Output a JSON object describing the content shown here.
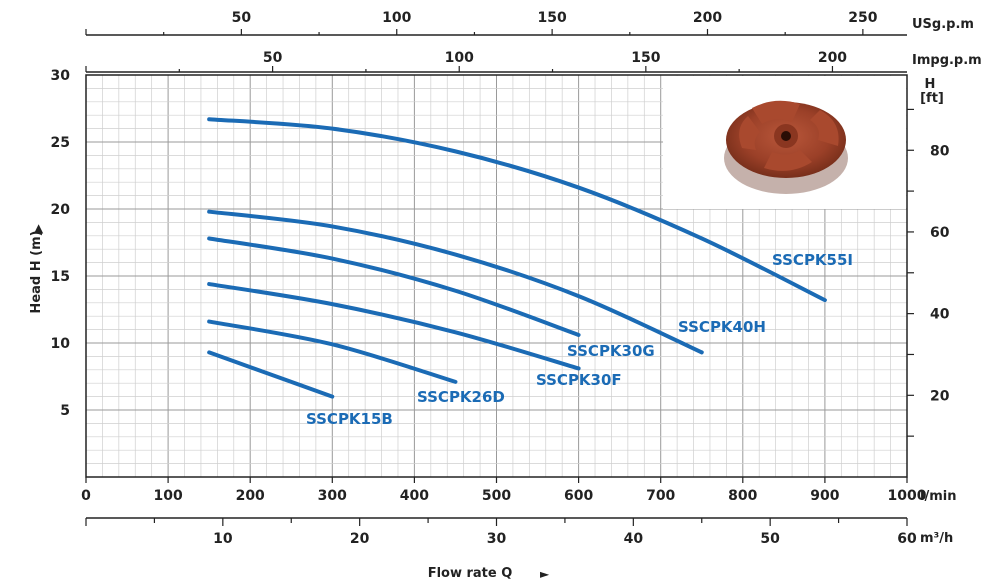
{
  "chart_data": {
    "type": "line",
    "title": "",
    "xlabel": "Flow rate Q",
    "ylabel": "Head H (m)",
    "xlim": [
      0,
      1000
    ],
    "ylim": [
      0,
      30
    ],
    "x_ticks": [
      0,
      100,
      200,
      300,
      400,
      500,
      600,
      700,
      800,
      900,
      1000
    ],
    "x_unit": "l/min",
    "y_ticks": [
      5,
      10,
      15,
      20,
      25,
      30
    ],
    "secondary_axes": {
      "ft": {
        "label": "H\n[ft]",
        "ticks": [
          20,
          40,
          60,
          80
        ]
      },
      "m3h": {
        "unit": "m³/h",
        "ticks": [
          10,
          20,
          30,
          40,
          50,
          60
        ]
      },
      "usgpm": {
        "unit": "USg.p.m",
        "ticks": [
          50,
          100,
          150,
          200,
          250
        ]
      },
      "impgpm": {
        "unit": "Impg.p.m",
        "ticks": [
          50,
          100,
          150,
          200
        ]
      }
    },
    "grid": true,
    "line_color": "#1b6bb5",
    "series": [
      {
        "name": "SSCPK55I",
        "x": [
          150,
          300,
          450,
          600,
          750,
          900
        ],
        "y": [
          26.7,
          26.0,
          24.3,
          21.6,
          17.8,
          13.2
        ]
      },
      {
        "name": "SSCPK40H",
        "x": [
          150,
          300,
          450,
          600,
          750
        ],
        "y": [
          19.8,
          18.7,
          16.6,
          13.5,
          9.3
        ]
      },
      {
        "name": "SSCPK30G",
        "x": [
          150,
          300,
          450,
          600
        ],
        "y": [
          17.8,
          16.3,
          13.9,
          10.6
        ]
      },
      {
        "name": "SSCPK30F",
        "x": [
          150,
          300,
          450,
          600
        ],
        "y": [
          14.4,
          12.9,
          10.8,
          8.1
        ]
      },
      {
        "name": "SSCPK26D",
        "x": [
          150,
          300,
          450
        ],
        "y": [
          11.6,
          9.9,
          7.1
        ]
      },
      {
        "name": "SSCPK15B",
        "x": [
          150,
          300
        ],
        "y": [
          9.3,
          6.0
        ]
      }
    ]
  },
  "image": {
    "name": "impeller-photo"
  }
}
